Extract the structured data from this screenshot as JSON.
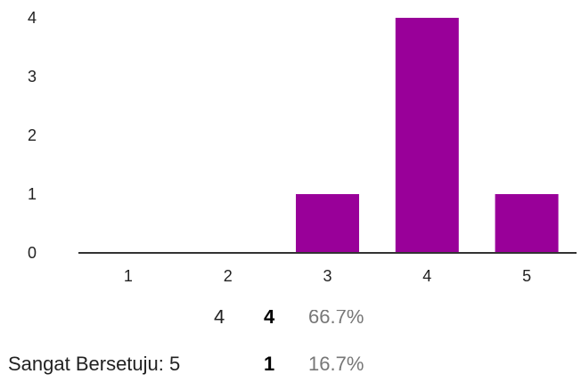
{
  "chart_data": {
    "type": "bar",
    "categories": [
      "1",
      "2",
      "3",
      "4",
      "5"
    ],
    "values": [
      0,
      0,
      1,
      4,
      1
    ],
    "title": "",
    "xlabel": "",
    "ylabel": "",
    "ylim": [
      0,
      4
    ],
    "yticks": [
      "0",
      "1",
      "2",
      "3",
      "4"
    ],
    "grid": false,
    "bar_color": "#990099"
  },
  "summary": {
    "rows": [
      {
        "label": "4",
        "count": "4",
        "percent": "66.7%"
      },
      {
        "label": "Sangat Bersetuju: 5",
        "count": "1",
        "percent": "16.7%"
      }
    ]
  }
}
